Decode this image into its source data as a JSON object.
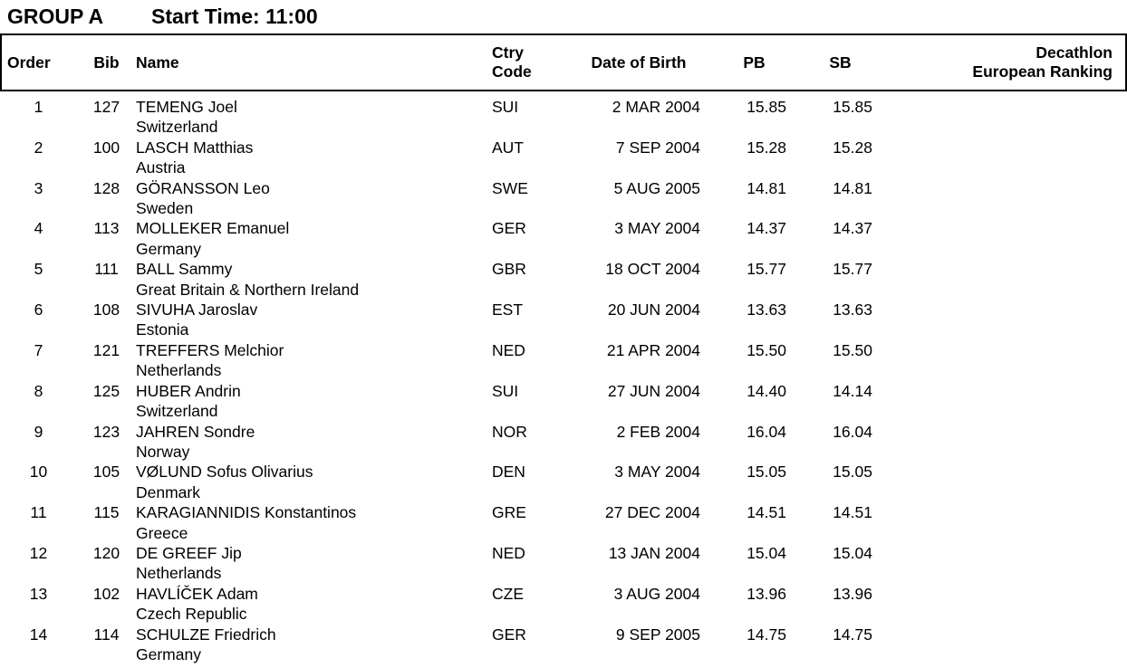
{
  "page": {
    "group_title": "GROUP A",
    "start_time": "Start Time: 11:00"
  },
  "colors": {
    "text": "#000000",
    "background": "#ffffff",
    "border": "#000000"
  },
  "table": {
    "headers": {
      "order": "Order",
      "bib": "Bib",
      "name": "Name",
      "ctry_code": "Ctry\nCode",
      "date_of_birth": "Date of Birth",
      "pb": "PB",
      "sb": "SB",
      "ranking": "Decathlon\nEuropean Ranking"
    },
    "rows": [
      {
        "order": "1",
        "bib": "127",
        "name": "TEMENG Joel",
        "country": "Switzerland",
        "ctry_code": "SUI",
        "date_of_birth": "2 MAR 2004",
        "pb": "15.85",
        "sb": "15.85",
        "ranking": ""
      },
      {
        "order": "2",
        "bib": "100",
        "name": "LASCH Matthias",
        "country": "Austria",
        "ctry_code": "AUT",
        "date_of_birth": "7 SEP 2004",
        "pb": "15.28",
        "sb": "15.28",
        "ranking": ""
      },
      {
        "order": "3",
        "bib": "128",
        "name": "GÖRANSSON Leo",
        "country": "Sweden",
        "ctry_code": "SWE",
        "date_of_birth": "5 AUG 2005",
        "pb": "14.81",
        "sb": "14.81",
        "ranking": ""
      },
      {
        "order": "4",
        "bib": "113",
        "name": "MOLLEKER Emanuel",
        "country": "Germany",
        "ctry_code": "GER",
        "date_of_birth": "3 MAY 2004",
        "pb": "14.37",
        "sb": "14.37",
        "ranking": ""
      },
      {
        "order": "5",
        "bib": "111",
        "name": "BALL Sammy",
        "country": "Great Britain & Northern Ireland",
        "ctry_code": "GBR",
        "date_of_birth": "18 OCT 2004",
        "pb": "15.77",
        "sb": "15.77",
        "ranking": ""
      },
      {
        "order": "6",
        "bib": "108",
        "name": "SIVUHA Jaroslav",
        "country": "Estonia",
        "ctry_code": "EST",
        "date_of_birth": "20 JUN 2004",
        "pb": "13.63",
        "sb": "13.63",
        "ranking": ""
      },
      {
        "order": "7",
        "bib": "121",
        "name": "TREFFERS Melchior",
        "country": "Netherlands",
        "ctry_code": "NED",
        "date_of_birth": "21 APR 2004",
        "pb": "15.50",
        "sb": "15.50",
        "ranking": ""
      },
      {
        "order": "8",
        "bib": "125",
        "name": "HUBER Andrin",
        "country": "Switzerland",
        "ctry_code": "SUI",
        "date_of_birth": "27 JUN 2004",
        "pb": "14.40",
        "sb": "14.14",
        "ranking": ""
      },
      {
        "order": "9",
        "bib": "123",
        "name": "JAHREN Sondre",
        "country": "Norway",
        "ctry_code": "NOR",
        "date_of_birth": "2 FEB 2004",
        "pb": "16.04",
        "sb": "16.04",
        "ranking": ""
      },
      {
        "order": "10",
        "bib": "105",
        "name": "VØLUND Sofus Olivarius",
        "country": "Denmark",
        "ctry_code": "DEN",
        "date_of_birth": "3 MAY 2004",
        "pb": "15.05",
        "sb": "15.05",
        "ranking": ""
      },
      {
        "order": "11",
        "bib": "115",
        "name": "KARAGIANNIDIS Konstantinos",
        "country": "Greece",
        "ctry_code": "GRE",
        "date_of_birth": "27 DEC 2004",
        "pb": "14.51",
        "sb": "14.51",
        "ranking": ""
      },
      {
        "order": "12",
        "bib": "120",
        "name": "DE GREEF Jip",
        "country": "Netherlands",
        "ctry_code": "NED",
        "date_of_birth": "13 JAN 2004",
        "pb": "15.04",
        "sb": "15.04",
        "ranking": ""
      },
      {
        "order": "13",
        "bib": "102",
        "name": "HAVLÍČEK Adam",
        "country": "Czech Republic",
        "ctry_code": "CZE",
        "date_of_birth": "3 AUG 2004",
        "pb": "13.96",
        "sb": "13.96",
        "ranking": ""
      },
      {
        "order": "14",
        "bib": "114",
        "name": "SCHULZE Friedrich",
        "country": "Germany",
        "ctry_code": "GER",
        "date_of_birth": "9 SEP 2005",
        "pb": "14.75",
        "sb": "14.75",
        "ranking": ""
      }
    ]
  }
}
